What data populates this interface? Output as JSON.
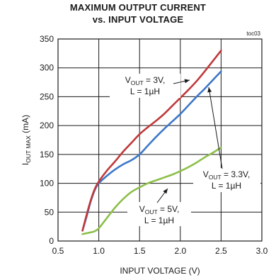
{
  "chart_data": {
    "type": "line",
    "title": "MAXIMUM OUTPUT CURRENT",
    "subtitle": "vs. INPUT VOLTAGE",
    "tag": "toc03",
    "xlabel": "INPUT VOLTAGE (V)",
    "ylabel": {
      "main": "I",
      "sub": "OUT MAX",
      "unit": " (mA)"
    },
    "xlim": [
      0.5,
      3.0
    ],
    "ylim": [
      0,
      350
    ],
    "x_ticks": [
      0.5,
      1.0,
      1.5,
      2.0,
      2.5,
      3.0
    ],
    "x_tick_labels": [
      "0.5",
      "1.0",
      "1.5",
      "2.0",
      "2.5",
      "3.0"
    ],
    "y_ticks": [
      0,
      50,
      100,
      150,
      200,
      250,
      300,
      350
    ],
    "y_tick_labels": [
      "0",
      "50",
      "100",
      "150",
      "200",
      "250",
      "300",
      "350"
    ],
    "grid": true,
    "series": [
      {
        "color": "#c0393b",
        "x": [
          0.8,
          0.85,
          0.9,
          0.95,
          1.0,
          1.1,
          1.2,
          1.3,
          1.4,
          1.5,
          1.6,
          1.7,
          1.8,
          1.9,
          2.0,
          2.1,
          2.2,
          2.3,
          2.4,
          2.5
        ],
        "y": [
          18,
          45,
          70,
          90,
          103,
          122,
          138,
          155,
          170,
          185,
          197,
          208,
          220,
          234,
          248,
          262,
          277,
          294,
          312,
          330
        ],
        "label": {
          "line1": [
            "V",
            "OUT",
            " = 3V,"
          ],
          "line2": "L = 1µH"
        }
      },
      {
        "color": "#3d78c9",
        "x": [
          0.8,
          0.85,
          0.9,
          0.95,
          1.0,
          1.1,
          1.2,
          1.3,
          1.4,
          1.5,
          1.6,
          1.7,
          1.8,
          1.9,
          2.0,
          2.1,
          2.2,
          2.3,
          2.4,
          2.5
        ],
        "y": [
          18,
          42,
          68,
          88,
          100,
          113,
          124,
          133,
          140,
          150,
          165,
          180,
          194,
          207,
          220,
          235,
          250,
          264,
          279,
          294
        ],
        "label": {
          "line1": [
            "V",
            "OUT",
            " = 3.3V,"
          ],
          "line2": "L = 1µH"
        }
      },
      {
        "color": "#8dbf4a",
        "x": [
          0.8,
          0.9,
          0.95,
          1.0,
          1.1,
          1.2,
          1.3,
          1.4,
          1.5,
          1.6,
          1.7,
          1.8,
          1.9,
          2.0,
          2.1,
          2.2,
          2.3,
          2.4,
          2.5
        ],
        "y": [
          12,
          15,
          17,
          22,
          40,
          58,
          73,
          85,
          93,
          100,
          105,
          110,
          115,
          121,
          128,
          136,
          145,
          153,
          162
        ],
        "label": {
          "line1": [
            "V",
            "OUT",
            " = 5V,"
          ],
          "line2": "L = 1µH"
        }
      }
    ]
  }
}
